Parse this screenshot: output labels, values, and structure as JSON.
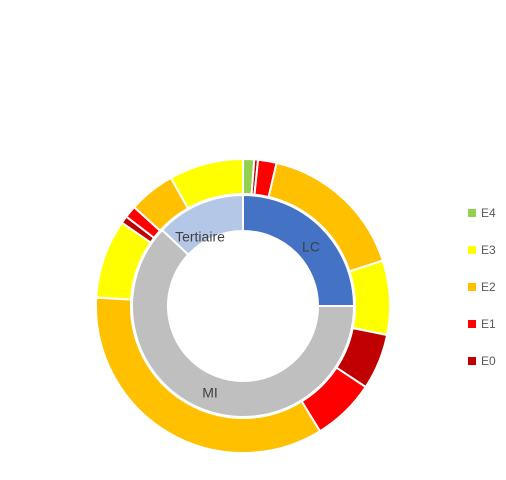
{
  "chart_data": {
    "type": "pie",
    "subtype": "nested-donut",
    "inner_ring": {
      "slices": [
        {
          "label": "LC",
          "value": 25,
          "color": "#4472C4"
        },
        {
          "label": "MI",
          "value": 62,
          "color": "#BFBFBF"
        },
        {
          "label": "Tertiaire",
          "value": 13,
          "color": "#B4C7E7"
        }
      ]
    },
    "outer_ring": {
      "slices": [
        {
          "category": "E4",
          "value": 1.2,
          "color": "#92D050"
        },
        {
          "category": "E0",
          "value": 0.4,
          "color": "#C00000"
        },
        {
          "category": "E1",
          "value": 2.0,
          "color": "#FF0000"
        },
        {
          "category": "E2",
          "value": 16.0,
          "color": "#FFC000"
        },
        {
          "category": "E3",
          "value": 8.0,
          "color": "#FFFF00"
        },
        {
          "category": "E0",
          "value": 6.0,
          "color": "#C00000"
        },
        {
          "category": "E1",
          "value": 6.8,
          "color": "#FF0000"
        },
        {
          "category": "E2",
          "value": 34.0,
          "color": "#FFC000"
        },
        {
          "category": "E3",
          "value": 8.5,
          "color": "#FFFF00"
        },
        {
          "category": "E0",
          "value": 0.8,
          "color": "#C00000"
        },
        {
          "category": "E1",
          "value": 1.3,
          "color": "#FF0000"
        },
        {
          "category": "E2",
          "value": 5.0,
          "color": "#FFC000"
        },
        {
          "category": "E3",
          "value": 8.0,
          "color": "#FFFF00"
        }
      ]
    },
    "legend": {
      "placement": "right",
      "items": [
        {
          "label": "E4",
          "color": "#92D050"
        },
        {
          "label": "E3",
          "color": "#FFFF00"
        },
        {
          "label": "E2",
          "color": "#FFC000"
        },
        {
          "label": "E1",
          "color": "#FF0000"
        },
        {
          "label": "E0",
          "color": "#C00000"
        }
      ]
    }
  }
}
